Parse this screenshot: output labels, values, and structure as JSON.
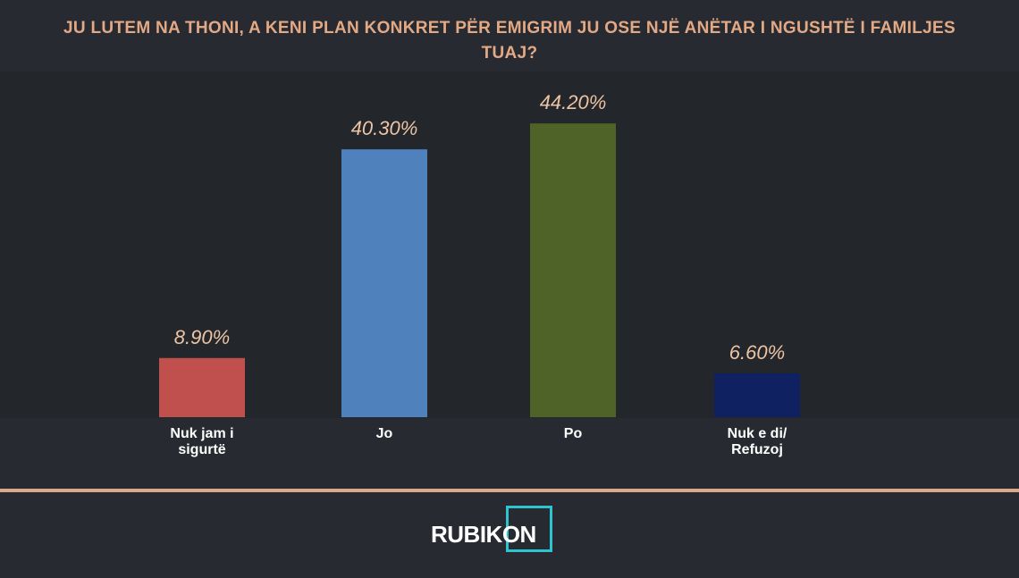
{
  "chart_data": {
    "type": "bar",
    "title": "JU LUTEM NA THONI, A KENI PLAN KONKRET PËR EMIGRIM JU OSE NJË ANËTAR I NGUSHTË I FAMILJES TUAJ?",
    "categories": [
      "Nuk jam i sigurtë",
      "Jo",
      "Po",
      "Nuk e di/ Refuzoj"
    ],
    "values": [
      8.9,
      40.3,
      44.2,
      6.6
    ],
    "value_labels": [
      "8.90%",
      "40.30%",
      "44.20%",
      "6.60%"
    ],
    "colors": [
      "#c0504d",
      "#4f81bd",
      "#4f6228",
      "#0f2160"
    ]
  },
  "logo": {
    "text": "RUBIKON"
  }
}
